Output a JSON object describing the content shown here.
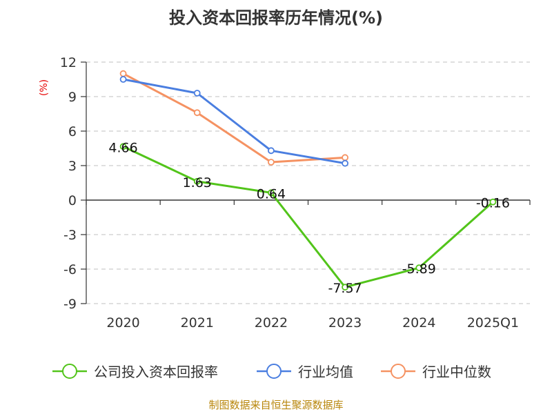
{
  "chart_data": {
    "type": "line",
    "title": "投入资本回报率历年情况(%)",
    "ylabel": "(%)",
    "xlabel": "",
    "categories": [
      "2020",
      "2021",
      "2022",
      "2023",
      "2024",
      "2025Q1"
    ],
    "ylim": [
      -9,
      12
    ],
    "yticks": [
      12,
      9,
      6,
      3,
      0,
      -3,
      -6,
      -9
    ],
    "grid": true,
    "legend_position": "bottom",
    "series": [
      {
        "name": "公司投入资本回报率",
        "color": "#52c41a",
        "values": [
          4.66,
          1.63,
          0.64,
          -7.57,
          -5.89,
          -0.16
        ],
        "labels": [
          "4.66",
          "1.63",
          "0.64",
          "-7.57",
          "-5.89",
          "-0.16"
        ]
      },
      {
        "name": "行业均值",
        "color": "#4a7ee0",
        "values": [
          10.5,
          9.3,
          4.3,
          3.2,
          null,
          null
        ]
      },
      {
        "name": "行业中位数",
        "color": "#f59262",
        "values": [
          11.0,
          7.6,
          3.3,
          3.7,
          null,
          null
        ]
      }
    ],
    "source": "制图数据来自恒生聚源数据库"
  }
}
